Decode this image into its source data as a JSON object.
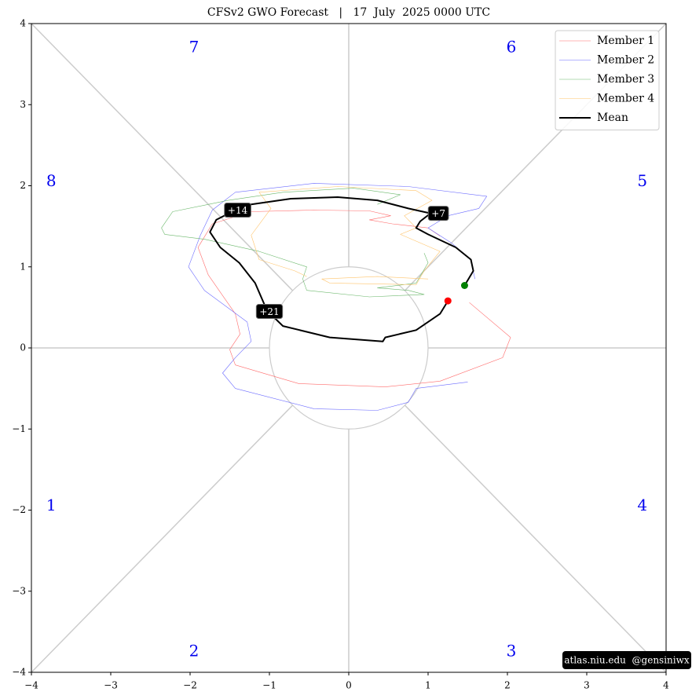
{
  "chart_data": {
    "type": "phase",
    "title": "CFSv2 GWO Forecast   |   17  July  2025 0000 UTC",
    "watermark": "atlas.niu.edu  @gensiniwx",
    "xlim": [
      -4,
      4
    ],
    "ylim": [
      -4,
      4
    ],
    "xticks": [
      {
        "value": -4,
        "label": "−4"
      },
      {
        "value": -3,
        "label": "−3"
      },
      {
        "value": -2,
        "label": "−2"
      },
      {
        "value": -1,
        "label": "−1"
      },
      0,
      1,
      2,
      3,
      4
    ],
    "yticks": [
      {
        "value": -4,
        "label": "−4"
      },
      {
        "value": -3,
        "label": "−3"
      },
      {
        "value": -2,
        "label": "−2"
      },
      {
        "value": -1,
        "label": "−1"
      },
      0,
      1,
      2,
      3,
      4
    ],
    "phases": [
      "1",
      "2",
      "3",
      "4",
      "5",
      "6",
      "7",
      "8"
    ],
    "legend": "upper right",
    "series": [
      {
        "name": "Member 1",
        "color": "#ff6b6b",
        "linewidth": 0.6,
        "x": [
          1.52,
          2.04,
          1.94,
          1.15,
          0.46,
          -0.63,
          -1.43,
          -1.5,
          -1.37,
          -1.43,
          -1.77,
          -1.9,
          -1.72,
          -1.23,
          -0.44,
          0.26,
          0.53,
          0.26,
          0.55,
          1.0,
          1.15
        ],
        "values": [
          0.56,
          0.13,
          -0.12,
          -0.41,
          -0.48,
          -0.44,
          -0.21,
          -0.02,
          0.17,
          0.42,
          0.9,
          1.24,
          1.53,
          1.68,
          1.7,
          1.69,
          1.63,
          1.58,
          1.53,
          1.48,
          1.38
        ]
      },
      {
        "name": "Member 2",
        "color": "#6b6bff",
        "linewidth": 0.6,
        "x": [
          1.59,
          1.54,
          1.3,
          1.0,
          1.25,
          1.64,
          1.74,
          0.75,
          -0.44,
          -1.43,
          -1.72,
          -1.87,
          -2.02,
          -1.82,
          -1.28,
          -1.23,
          -1.43,
          -1.59,
          -1.43,
          -0.44,
          0.36,
          0.75,
          0.85,
          1.5
        ],
        "values": [
          0.85,
          1.09,
          1.29,
          1.48,
          1.63,
          1.72,
          1.87,
          1.99,
          2.03,
          1.92,
          1.7,
          1.39,
          1.0,
          0.71,
          0.32,
          0.08,
          -0.12,
          -0.31,
          -0.5,
          -0.75,
          -0.77,
          -0.67,
          -0.5,
          -0.42
        ]
      },
      {
        "name": "Member 3",
        "color": "#6bb86b",
        "linewidth": 0.6,
        "x": [
          0.95,
          1.0,
          0.85,
          0.36,
          0.75,
          0.95,
          0.26,
          -0.53,
          -0.58,
          -0.53,
          -1.13,
          -1.82,
          -2.32,
          -2.36,
          -2.22,
          -1.52,
          -0.83,
          0.06,
          0.65,
          0.36
        ],
        "values": [
          1.17,
          1.05,
          0.8,
          0.74,
          0.71,
          0.66,
          0.63,
          0.71,
          0.85,
          1.0,
          1.19,
          1.34,
          1.4,
          1.48,
          1.68,
          1.82,
          1.92,
          1.97,
          1.89,
          1.77
        ]
      },
      {
        "name": "Member 4",
        "color": "#ffc46b",
        "linewidth": 0.6,
        "x": [
          1.0,
          0.36,
          -0.34,
          -0.24,
          0.85,
          0.95,
          1.15,
          0.65,
          0.85,
          0.7,
          1.05,
          0.85,
          -0.14,
          -1.13,
          -0.98,
          -1.23,
          -1.13,
          -0.68,
          -0.53
        ],
        "values": [
          0.85,
          0.88,
          0.85,
          0.8,
          0.78,
          0.95,
          1.19,
          1.4,
          1.48,
          1.63,
          1.82,
          1.94,
          1.99,
          1.92,
          1.72,
          1.39,
          1.09,
          0.95,
          0.88
        ]
      },
      {
        "name": "Mean",
        "color": "#000000",
        "linewidth": 2,
        "x": [
          1.46,
          1.57,
          1.54,
          1.35,
          1.0,
          0.85,
          0.9,
          1.03,
          0.75,
          0.36,
          -0.14,
          -0.73,
          -1.23,
          -1.45,
          -1.67,
          -1.75,
          -1.62,
          -1.38,
          -1.18,
          -1.03,
          -0.83,
          -0.24,
          0.43,
          0.46,
          0.85,
          1.15,
          1.25
        ],
        "values": [
          0.77,
          0.95,
          1.09,
          1.24,
          1.4,
          1.48,
          1.56,
          1.66,
          1.72,
          1.82,
          1.86,
          1.84,
          1.77,
          1.69,
          1.58,
          1.43,
          1.24,
          1.05,
          0.8,
          0.46,
          0.27,
          0.13,
          0.08,
          0.13,
          0.22,
          0.42,
          0.58
        ]
      }
    ],
    "start_color": "green",
    "end_color": "red",
    "annotations": [
      {
        "text": "+7",
        "x": 1.13,
        "y": 1.66
      },
      {
        "text": "+14",
        "x": -1.4,
        "y": 1.7
      },
      {
        "text": "+21",
        "x": -1.0,
        "y": 0.45
      }
    ]
  }
}
